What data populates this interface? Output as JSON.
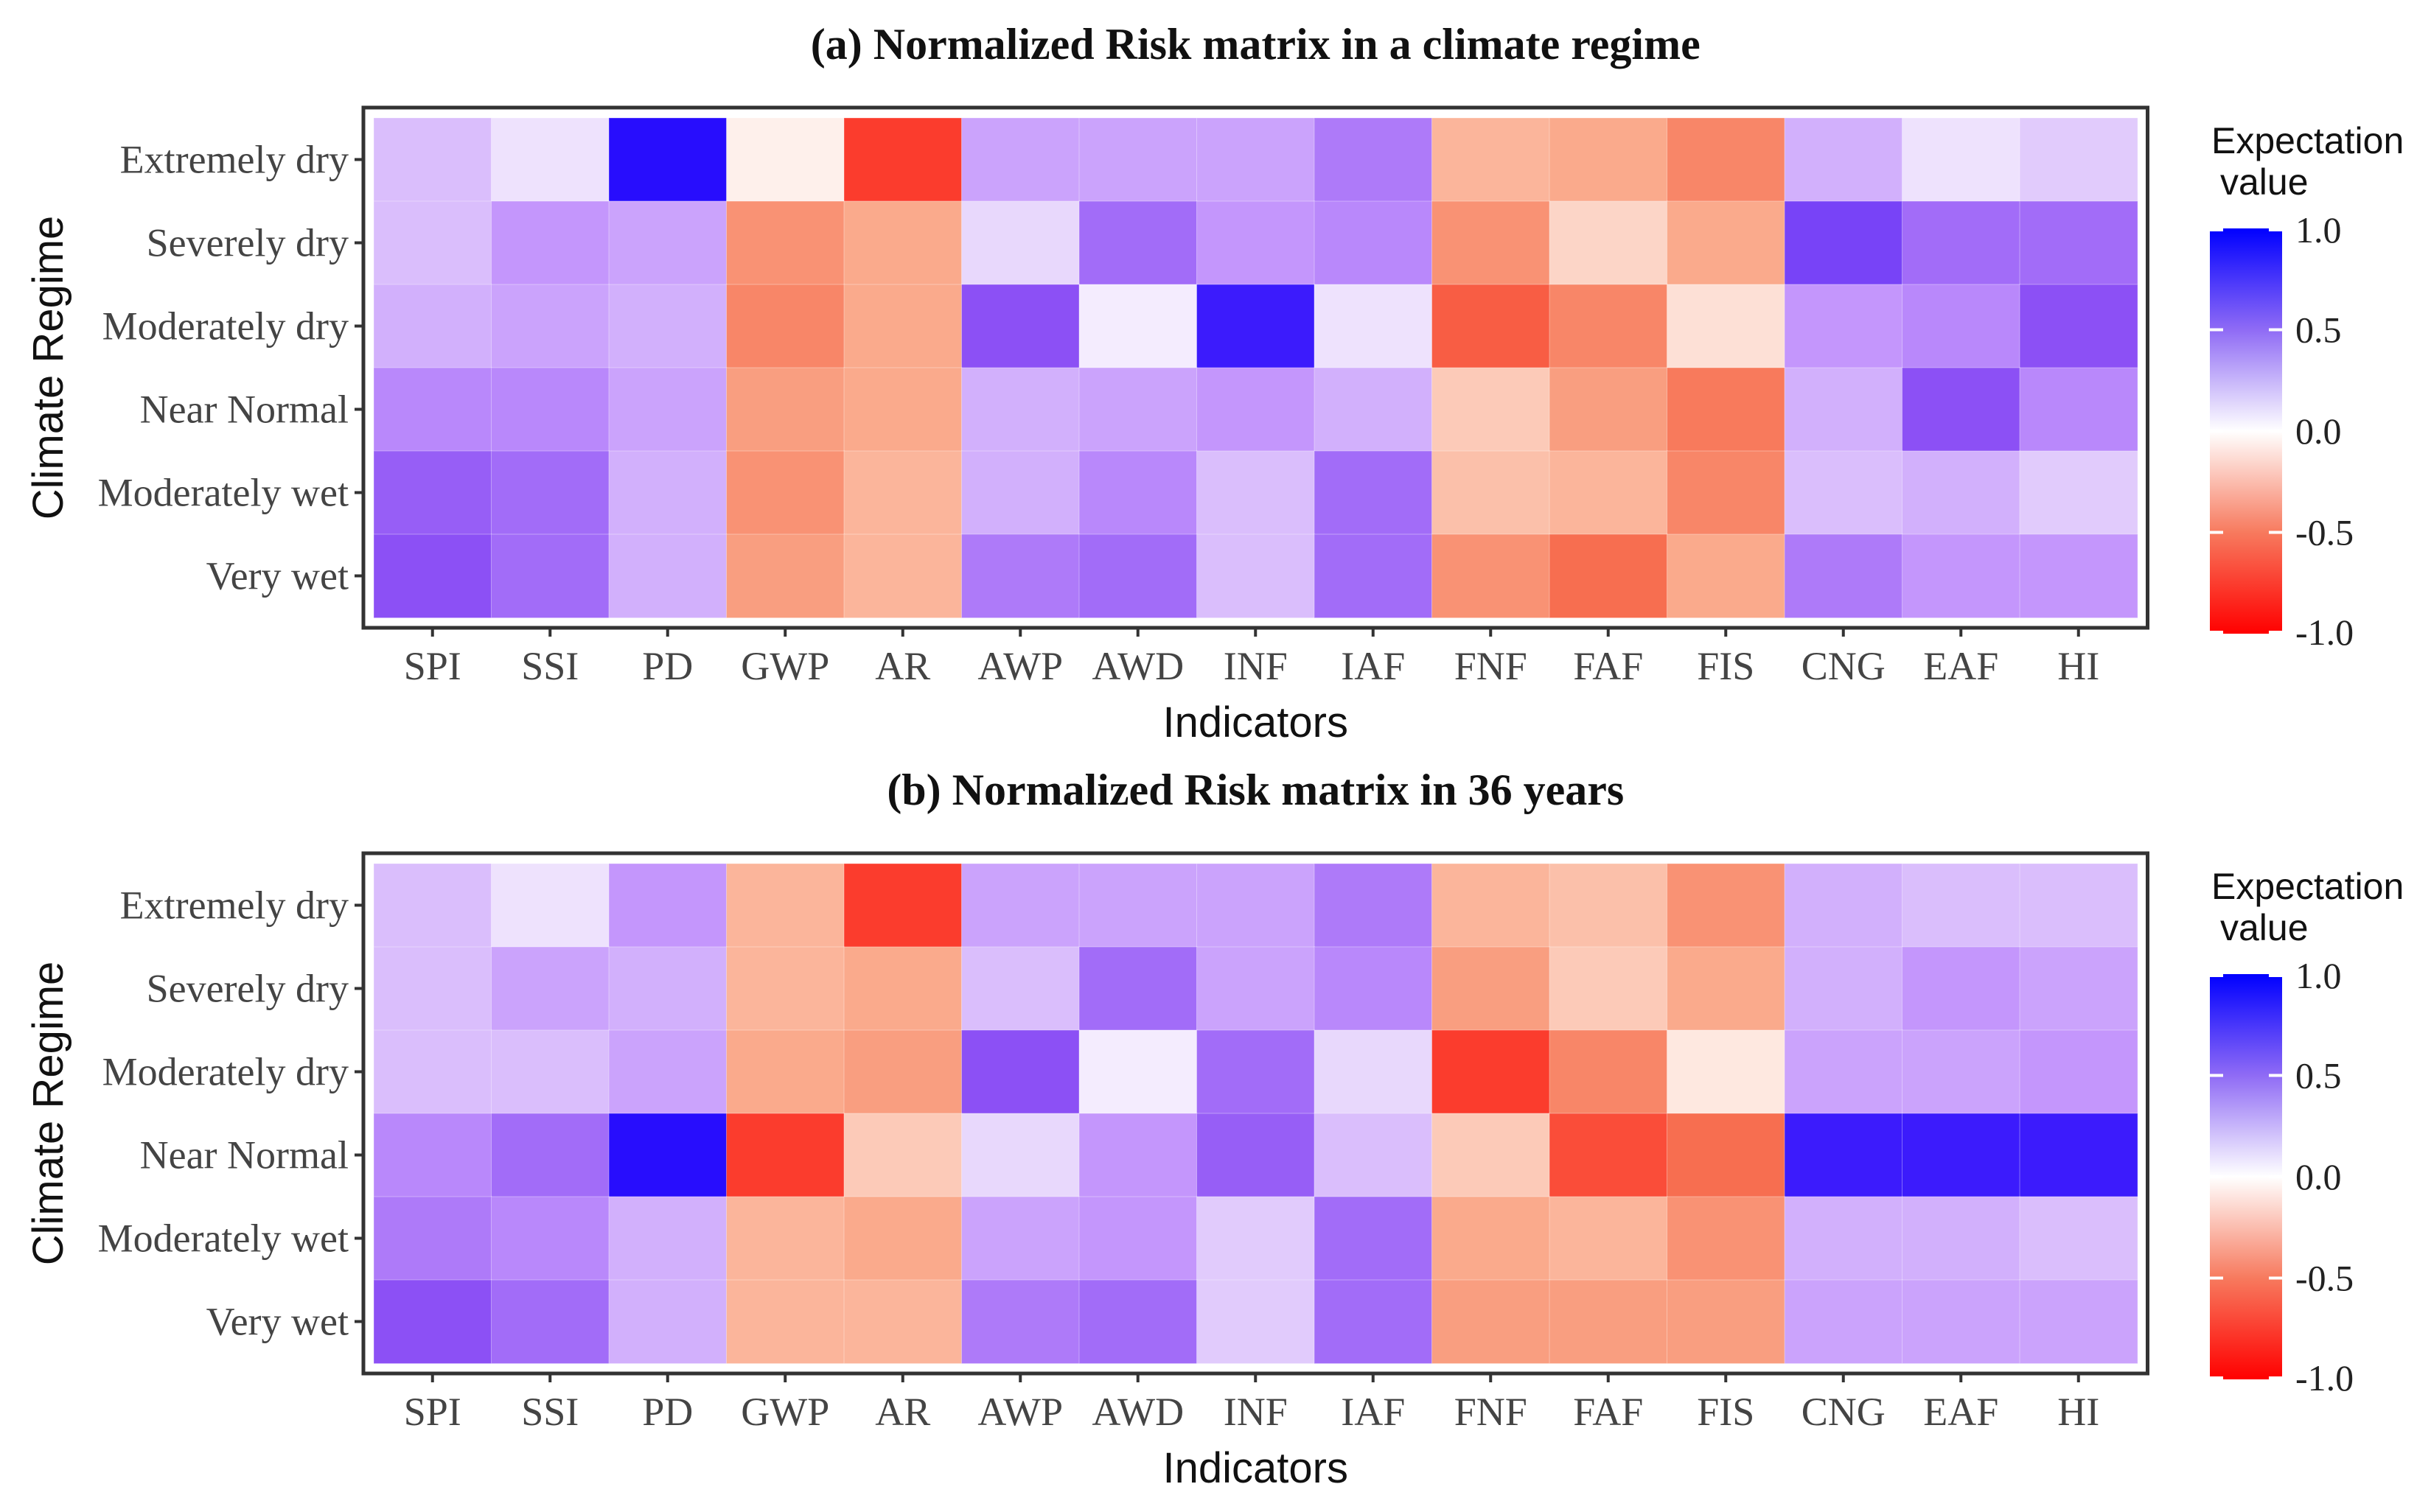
{
  "chart_data": [
    {
      "type": "heatmap",
      "title": "(a) Normalized Risk matrix in a climate regime",
      "xlabel": "Indicators",
      "ylabel": "Climate Regime",
      "x_categories": [
        "SPI",
        "SSI",
        "PD",
        "GWP",
        "AR",
        "AWP",
        "AWD",
        "INF",
        "IAF",
        "FNF",
        "FAF",
        "FIS",
        "CNG",
        "EAF",
        "HI"
      ],
      "y_categories": [
        "Extremely dry",
        "Severely dry",
        "Moderately dry",
        "Near Normal",
        "Moderately wet",
        "Very wet"
      ],
      "values": [
        [
          0.3,
          0.15,
          0.95,
          -0.1,
          -0.85,
          0.4,
          0.4,
          0.4,
          0.55,
          -0.4,
          -0.45,
          -0.6,
          0.35,
          0.15,
          0.25
        ],
        [
          0.3,
          0.45,
          0.4,
          -0.55,
          -0.45,
          0.2,
          0.6,
          0.45,
          0.5,
          -0.55,
          -0.25,
          -0.45,
          0.75,
          0.6,
          0.6
        ],
        [
          0.35,
          0.4,
          0.35,
          -0.6,
          -0.45,
          0.7,
          0.1,
          0.9,
          0.15,
          -0.75,
          -0.6,
          -0.2,
          0.45,
          0.5,
          0.7
        ],
        [
          0.5,
          0.5,
          0.4,
          -0.5,
          -0.45,
          0.35,
          0.4,
          0.45,
          0.35,
          -0.3,
          -0.5,
          -0.65,
          0.35,
          0.7,
          0.5
        ],
        [
          0.65,
          0.6,
          0.35,
          -0.55,
          -0.4,
          0.35,
          0.5,
          0.3,
          0.6,
          -0.35,
          -0.4,
          -0.6,
          0.3,
          0.35,
          0.25
        ],
        [
          0.7,
          0.6,
          0.35,
          -0.5,
          -0.4,
          0.55,
          0.6,
          0.3,
          0.6,
          -0.55,
          -0.7,
          -0.45,
          0.55,
          0.45,
          0.45
        ]
      ],
      "color_min": -1.0,
      "color_max": 1.0,
      "legend_title": "Expectation value",
      "legend_title_lines": [
        "Expectation",
        "value"
      ],
      "legend_ticks": [
        "1.0",
        "0.5",
        "0.0",
        "-0.5",
        "-1.0"
      ],
      "legend_position": "right"
    },
    {
      "type": "heatmap",
      "title": "(b) Normalized Risk matrix in 36 years",
      "xlabel": "Indicators",
      "ylabel": "Climate Regime",
      "x_categories": [
        "SPI",
        "SSI",
        "PD",
        "GWP",
        "AR",
        "AWP",
        "AWD",
        "INF",
        "IAF",
        "FNF",
        "FAF",
        "FIS",
        "CNG",
        "EAF",
        "HI"
      ],
      "y_categories": [
        "Extremely dry",
        "Severely dry",
        "Moderately dry",
        "Near Normal",
        "Moderately wet",
        "Very wet"
      ],
      "values": [
        [
          0.3,
          0.15,
          0.45,
          -0.4,
          -0.85,
          0.4,
          0.4,
          0.4,
          0.55,
          -0.4,
          -0.35,
          -0.55,
          0.35,
          0.3,
          0.3
        ],
        [
          0.3,
          0.4,
          0.35,
          -0.4,
          -0.45,
          0.3,
          0.6,
          0.4,
          0.5,
          -0.5,
          -0.3,
          -0.45,
          0.35,
          0.45,
          0.4
        ],
        [
          0.3,
          0.3,
          0.4,
          -0.45,
          -0.5,
          0.7,
          0.1,
          0.6,
          0.2,
          -0.85,
          -0.6,
          -0.15,
          0.4,
          0.4,
          0.45
        ],
        [
          0.5,
          0.6,
          0.95,
          -0.85,
          -0.3,
          0.2,
          0.45,
          0.65,
          0.3,
          -0.3,
          -0.8,
          -0.7,
          0.9,
          0.9,
          0.9
        ],
        [
          0.55,
          0.5,
          0.35,
          -0.4,
          -0.45,
          0.4,
          0.45,
          0.25,
          0.6,
          -0.45,
          -0.4,
          -0.55,
          0.35,
          0.35,
          0.3
        ],
        [
          0.7,
          0.6,
          0.35,
          -0.4,
          -0.4,
          0.55,
          0.6,
          0.25,
          0.6,
          -0.5,
          -0.5,
          -0.5,
          0.4,
          0.4,
          0.4
        ]
      ],
      "color_min": -1.0,
      "color_max": 1.0,
      "legend_title": "Expectation value",
      "legend_title_lines": [
        "Expectation",
        "value"
      ],
      "legend_ticks": [
        "1.0",
        "0.5",
        "0.0",
        "-0.5",
        "-1.0"
      ],
      "legend_position": "right"
    }
  ],
  "colors": {
    "high": "#0000ff",
    "mid": "#ffffff",
    "low": "#ff0000",
    "panel_border": "#333333"
  }
}
